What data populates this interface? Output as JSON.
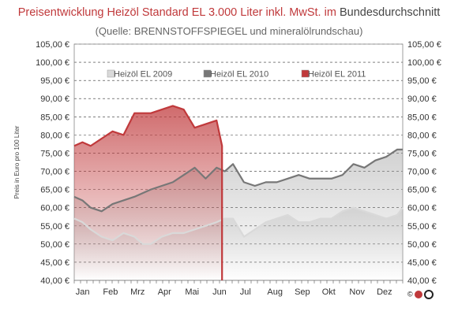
{
  "header": {
    "title_part1": "Preisentwicklung Heizöl Standard EL 3.000 Liter inkl. MwSt. im",
    "title_part2": "Bundesdurchschnitt",
    "subtitle": "(Quelle: BRENNSTOFFSPIEGEL  und mineralölrundschau)"
  },
  "logo": {
    "text": "©"
  },
  "colors": {
    "series_2009": "#d9d9d9",
    "series_2010": "#777777",
    "series_2011": "#c0393b",
    "grid": "#333333",
    "axis_text": "#333333"
  },
  "chart_data": {
    "type": "area",
    "ylabel": "Preis in Euro pro 100 Liter",
    "ylim": [
      40,
      105
    ],
    "ytick_values": [
      40,
      45,
      50,
      55,
      60,
      65,
      70,
      75,
      80,
      85,
      90,
      95,
      100,
      105
    ],
    "ytick_labels": [
      "40,00 €",
      "45,00 €",
      "50,00 €",
      "55,00 €",
      "60,00 €",
      "65,00 €",
      "70,00 €",
      "75,00 €",
      "80,00 €",
      "85,00 €",
      "90,00 €",
      "95,00 €",
      "100,00 €",
      "105,00 €"
    ],
    "months": [
      "Jan",
      "Feb",
      "Mrz",
      "Apr",
      "Mai",
      "Jun",
      "Jul",
      "Aug",
      "Sep",
      "Okt",
      "Nov",
      "Dez"
    ],
    "grid": "horizontal dashed",
    "legend": "top",
    "series": [
      {
        "name": "Heizöl EL 2009",
        "x": [
          0,
          0.3,
          0.6,
          1,
          1.4,
          1.8,
          2.2,
          2.5,
          2.8,
          3.2,
          3.6,
          4,
          4.4,
          4.8,
          5.2,
          5.5,
          5.8,
          6.2,
          6.6,
          7,
          7.4,
          7.8,
          8.2,
          8.6,
          9,
          9.4,
          9.8,
          10.2,
          10.6,
          11,
          11.4,
          11.8,
          12
        ],
        "values": [
          57,
          56,
          54,
          52,
          51,
          53,
          52,
          50,
          50,
          52,
          53,
          53,
          54,
          55,
          56,
          57,
          57,
          52,
          54,
          56,
          57,
          58,
          56,
          56,
          57,
          57,
          59,
          60,
          59,
          58,
          57,
          58,
          60
        ]
      },
      {
        "name": "Heizöl EL 2010",
        "x": [
          0,
          0.3,
          0.6,
          1,
          1.4,
          1.8,
          2.2,
          2.5,
          2.8,
          3.2,
          3.6,
          4,
          4.4,
          4.8,
          5.2,
          5.5,
          5.8,
          6.2,
          6.6,
          7,
          7.4,
          7.8,
          8.2,
          8.6,
          9,
          9.4,
          9.8,
          10.2,
          10.6,
          11,
          11.4,
          11.8,
          12
        ],
        "values": [
          63,
          62,
          60,
          59,
          61,
          62,
          63,
          64,
          65,
          66,
          67,
          69,
          71,
          68,
          71,
          70,
          72,
          67,
          66,
          67,
          67,
          68,
          69,
          68,
          68,
          68,
          69,
          72,
          71,
          73,
          74,
          76,
          76
        ]
      },
      {
        "name": "Heizöl EL 2011",
        "x": [
          0,
          0.3,
          0.6,
          1,
          1.4,
          1.8,
          2.2,
          2.5,
          2.8,
          3.2,
          3.6,
          4,
          4.4,
          4.8,
          5.2,
          5.4
        ],
        "values": [
          77,
          78,
          77,
          79,
          81,
          80,
          86,
          86,
          86,
          87,
          88,
          87,
          82,
          83,
          84,
          77
        ]
      }
    ]
  }
}
